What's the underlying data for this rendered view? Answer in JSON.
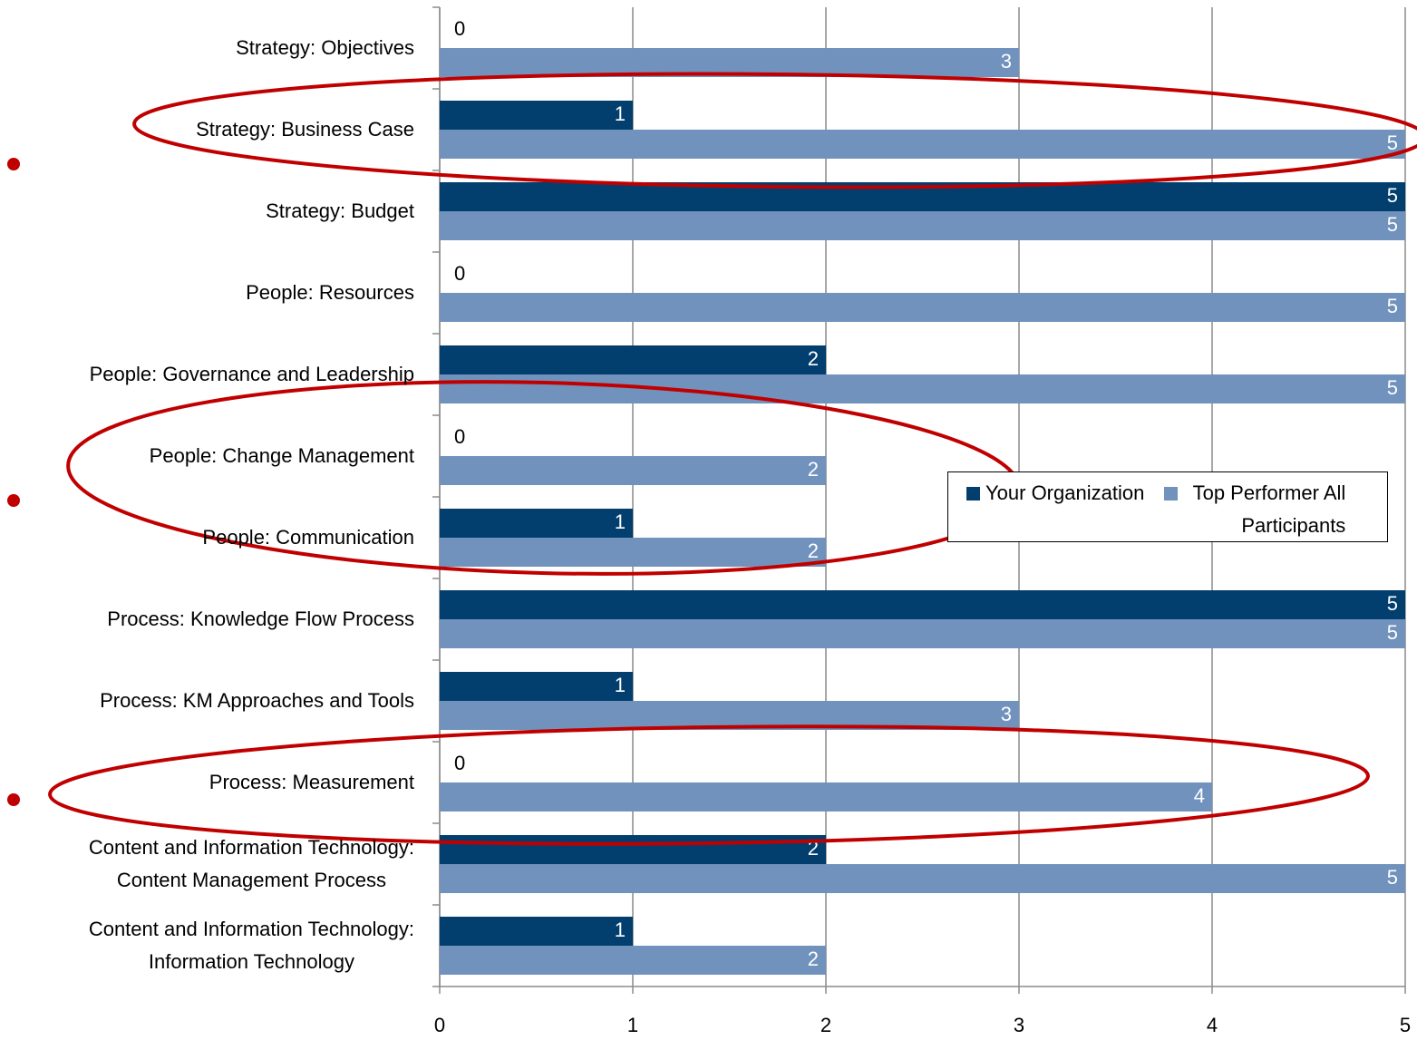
{
  "chart_data": {
    "type": "bar",
    "orientation": "horizontal",
    "categories": [
      "Strategy: Objectives",
      "Strategy: Business Case",
      "Strategy: Budget",
      "People: Resources",
      "People: Governance and Leadership",
      "People: Change Management",
      "People: Communication",
      "Process: Knowledge Flow Process",
      "Process: KM Approaches and Tools",
      "Process: Measurement",
      "Content and Information Technology:\nContent Management Process",
      "Content and Information Technology:\nInformation Technology"
    ],
    "series": [
      {
        "name": "Your Organization",
        "color": "#023f6e",
        "values": [
          0,
          1,
          5,
          0,
          2,
          0,
          1,
          5,
          1,
          0,
          2,
          1
        ]
      },
      {
        "name": "Top Performer All Participants",
        "color": "#7092bc",
        "values": [
          3,
          5,
          5,
          5,
          5,
          2,
          2,
          5,
          3,
          4,
          5,
          2
        ]
      }
    ],
    "xlim": [
      0,
      5
    ],
    "xticks": [
      0,
      1,
      2,
      3,
      4,
      5
    ],
    "grid": true
  }
}
